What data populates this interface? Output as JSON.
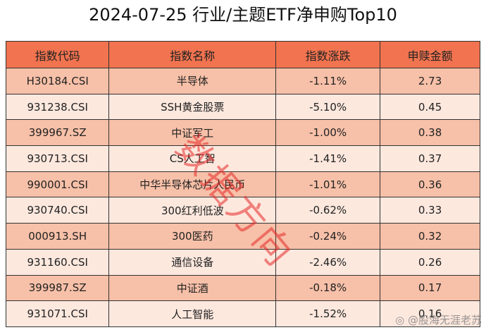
{
  "title": "2024-07-25 行业/主题ETF净申购Top10",
  "headers": [
    "指数代码",
    "指数名称",
    "指数涨跌",
    "申赎金额"
  ],
  "rows": [
    [
      "H30184.CSI",
      "半导体",
      "-1.11%",
      "2.73"
    ],
    [
      "931238.CSI",
      "SSH黄金股票",
      "-5.10%",
      "0.45"
    ],
    [
      "399967.SZ",
      "中证军工",
      "-1.00%",
      "0.38"
    ],
    [
      "930713.CSI",
      "CS人工智",
      "-1.41%",
      "0.37"
    ],
    [
      "990001.CSI",
      "中华半导体芯片人民币",
      "-1.01%",
      "0.36"
    ],
    [
      "930740.CSI",
      "300红利低波",
      "-0.62%",
      "0.33"
    ],
    [
      "000913.SH",
      "300医药",
      "-0.24%",
      "0.32"
    ],
    [
      "931160.CSI",
      "通信设备",
      "-2.46%",
      "0.26"
    ],
    [
      "399987.SZ",
      "中证酒",
      "-0.18%",
      "0.17"
    ],
    [
      "931071.CSI",
      "人工智能",
      "-1.52%",
      "0.16"
    ]
  ],
  "watermark": "数据方向",
  "weibo_watermark": "@股海无涯老苏",
  "colors": {
    "header": "#F2734F",
    "row_odd": "#F7C0A8",
    "row_even": "#FDE8DE",
    "watermark": "#E62828"
  }
}
